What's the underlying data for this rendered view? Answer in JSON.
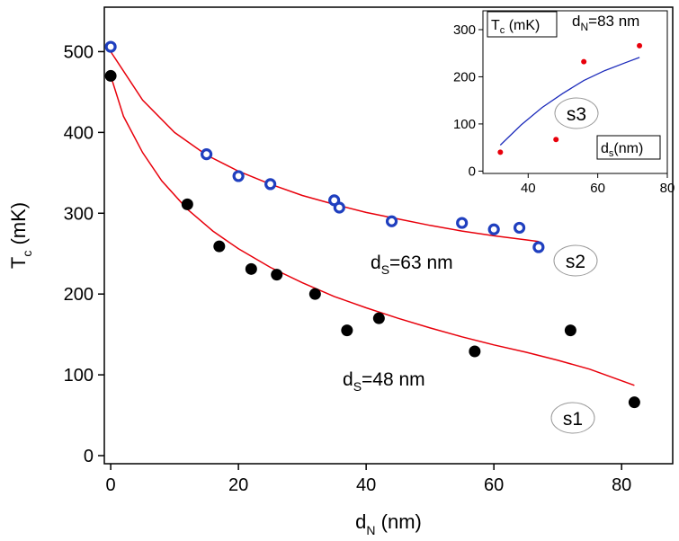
{
  "chart_data": [
    {
      "type": "scatter",
      "role": "main",
      "xlabel": "d",
      "xlabel_sub": "N",
      "xlabel_unit": " (nm)",
      "ylabel": "T",
      "ylabel_sub": "c",
      "ylabel_unit": " (mK)",
      "xlim": [
        -1,
        88
      ],
      "ylim": [
        -10,
        555
      ],
      "xticks": [
        0,
        20,
        40,
        60,
        80
      ],
      "yticks": [
        0,
        100,
        200,
        300,
        400,
        500
      ],
      "series": [
        {
          "name": "s2",
          "marker": "open-circle",
          "color": "#1f3fbf",
          "annotation": "d",
          "annotation_sub": "S",
          "annotation_rest": "=63 nm",
          "points": [
            [
              0,
              506
            ],
            [
              15,
              373
            ],
            [
              20,
              346
            ],
            [
              25,
              336
            ],
            [
              35,
              316
            ],
            [
              35.8,
              307
            ],
            [
              44,
              290
            ],
            [
              55,
              288
            ],
            [
              60,
              280
            ],
            [
              64,
              282
            ],
            [
              67,
              258
            ]
          ],
          "fit": [
            [
              0,
              500
            ],
            [
              5,
              440
            ],
            [
              10,
              400
            ],
            [
              15,
              372
            ],
            [
              20,
              352
            ],
            [
              25,
              336
            ],
            [
              30,
              322
            ],
            [
              35,
              311
            ],
            [
              40,
              301
            ],
            [
              45,
              293
            ],
            [
              50,
              285
            ],
            [
              55,
              278
            ],
            [
              60,
              272
            ],
            [
              65,
              267
            ],
            [
              67,
              265
            ]
          ]
        },
        {
          "name": "s1",
          "marker": "filled-circle",
          "color": "#000000",
          "annotation": "d",
          "annotation_sub": "S",
          "annotation_rest": "=48 nm",
          "points": [
            [
              0,
              470
            ],
            [
              12,
              311
            ],
            [
              17,
              259
            ],
            [
              22,
              231
            ],
            [
              26,
              224
            ],
            [
              32,
              200
            ],
            [
              37,
              155
            ],
            [
              42,
              170
            ],
            [
              57,
              129
            ],
            [
              72,
              155
            ],
            [
              82,
              66
            ]
          ],
          "fit": [
            [
              0,
              470
            ],
            [
              2,
              420
            ],
            [
              5,
              375
            ],
            [
              8,
              340
            ],
            [
              12,
              305
            ],
            [
              16,
              278
            ],
            [
              20,
              256
            ],
            [
              25,
              233
            ],
            [
              30,
              214
            ],
            [
              35,
              197
            ],
            [
              40,
              183
            ],
            [
              45,
              170
            ],
            [
              50,
              158
            ],
            [
              55,
              147
            ],
            [
              60,
              137
            ],
            [
              65,
              128
            ],
            [
              70,
              118
            ],
            [
              75,
              107
            ],
            [
              82,
              87
            ]
          ]
        }
      ],
      "fit_color": "#e8000b"
    },
    {
      "type": "scatter",
      "role": "inset",
      "title": "d",
      "title_sub": "N",
      "title_rest": "=83 nm",
      "ylabel": "T",
      "ylabel_sub": "c",
      "ylabel_unit": " (mK)",
      "xlabel": "d",
      "xlabel_sub": "s",
      "xlabel_unit": "(nm)",
      "label": "s3",
      "xlim": [
        27,
        80
      ],
      "ylim": [
        -5,
        340
      ],
      "xticks": [
        40,
        60,
        80
      ],
      "yticks": [
        0,
        100,
        200,
        300
      ],
      "points": [
        [
          32,
          40
        ],
        [
          48,
          67
        ],
        [
          56,
          232
        ],
        [
          72,
          266
        ]
      ],
      "point_color": "#e8000b",
      "fit": [
        [
          32,
          55
        ],
        [
          38,
          98
        ],
        [
          44,
          135
        ],
        [
          50,
          165
        ],
        [
          56,
          192
        ],
        [
          62,
          213
        ],
        [
          68,
          230
        ],
        [
          72,
          241
        ]
      ],
      "fit_color": "#1c2bbb"
    }
  ]
}
